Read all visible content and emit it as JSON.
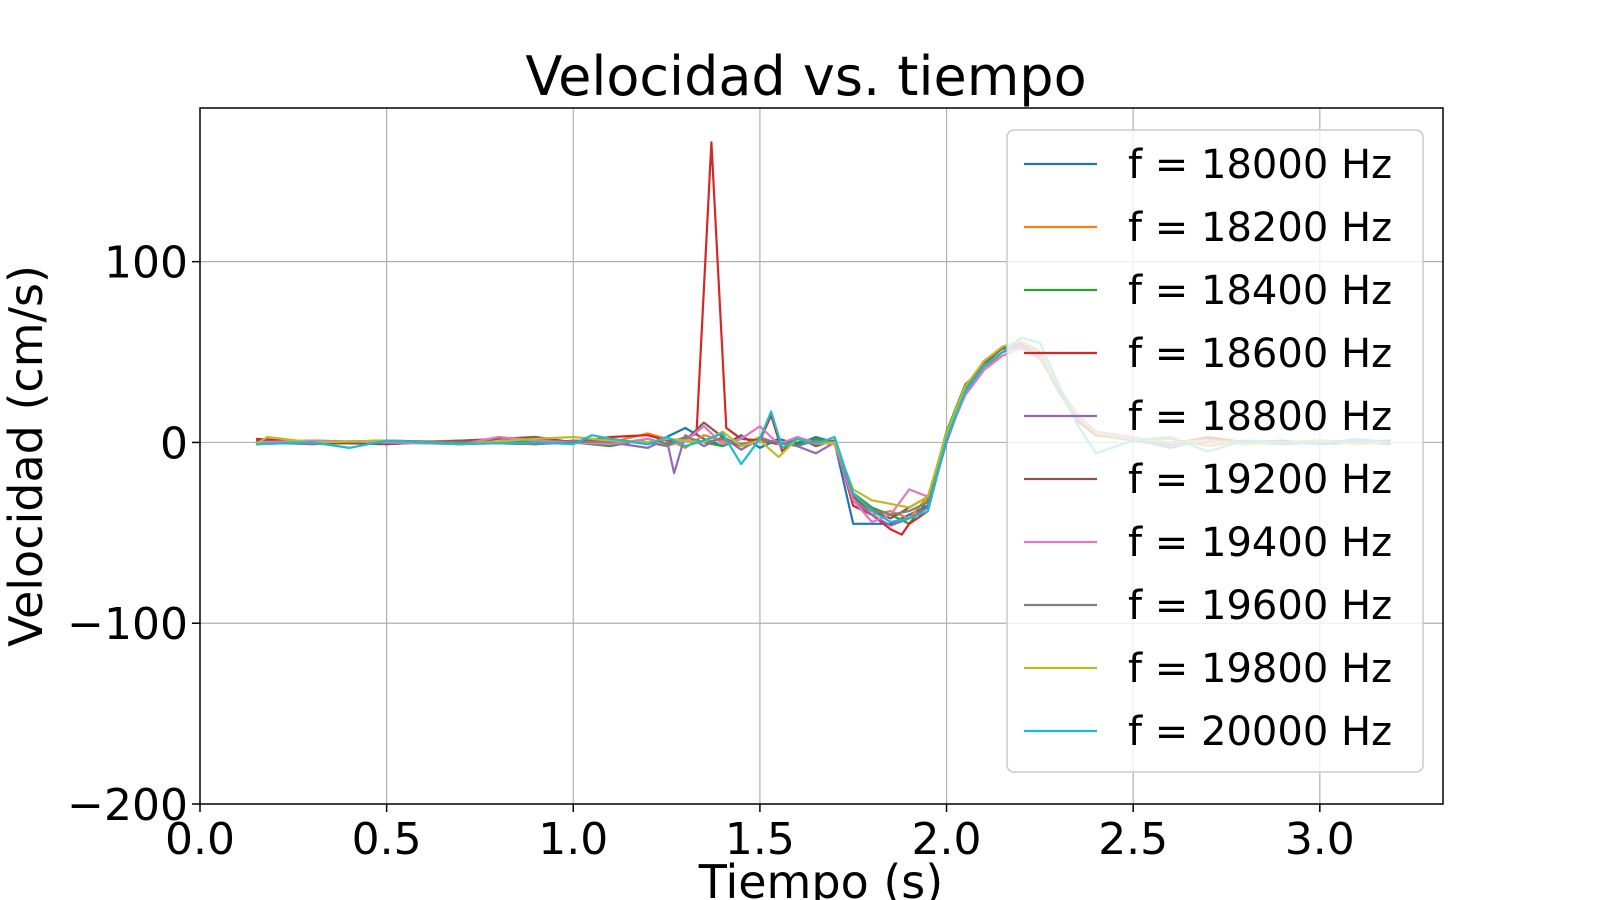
{
  "chart_data": {
    "type": "line",
    "title": "Velocidad vs. tiempo",
    "xlabel": "Tiempo (s)",
    "ylabel": "Velocidad (cm/s)",
    "xlim": [
      0.0,
      3.33
    ],
    "ylim": [
      -200,
      185
    ],
    "xticks": [
      0.0,
      0.5,
      1.0,
      1.5,
      2.0,
      2.5,
      3.0
    ],
    "xtick_labels": [
      "0.0",
      "0.5",
      "1.0",
      "1.5",
      "2.0",
      "2.5",
      "3.0"
    ],
    "yticks": [
      -200,
      -100,
      0,
      100
    ],
    "ytick_labels": [
      "−200",
      "−100",
      "0",
      "100"
    ],
    "grid": true,
    "legend_position": "upper-right",
    "series": [
      {
        "name": "f = 18000 Hz",
        "color": "#1f77b4",
        "x": [
          0.15,
          0.3,
          0.5,
          0.7,
          0.9,
          1.0,
          1.1,
          1.2,
          1.25,
          1.3,
          1.35,
          1.4,
          1.45,
          1.5,
          1.55,
          1.6,
          1.65,
          1.7,
          1.75,
          1.8,
          1.85,
          1.9,
          1.95,
          2.0,
          2.05,
          2.1,
          2.15,
          2.2,
          2.25,
          2.3,
          2.35,
          2.4,
          2.5,
          2.6,
          2.7,
          2.8,
          2.9,
          3.0,
          3.1,
          3.19
        ],
        "y": [
          0,
          1,
          -1,
          1,
          0,
          0,
          2,
          -1,
          3,
          8,
          2,
          -2,
          4,
          -3,
          2,
          -1,
          3,
          0,
          -45,
          -45,
          -45,
          -40,
          -35,
          5,
          30,
          45,
          52,
          55,
          50,
          30,
          15,
          5,
          2,
          -3,
          2,
          -1,
          0,
          1,
          -1,
          0
        ]
      },
      {
        "name": "f = 18200 Hz",
        "color": "#ff7f0e",
        "x": [
          0.15,
          0.3,
          0.5,
          0.7,
          0.9,
          1.0,
          1.1,
          1.2,
          1.25,
          1.3,
          1.35,
          1.4,
          1.45,
          1.5,
          1.55,
          1.6,
          1.65,
          1.7,
          1.75,
          1.8,
          1.85,
          1.9,
          1.95,
          2.0,
          2.05,
          2.1,
          2.15,
          2.2,
          2.25,
          2.3,
          2.35,
          2.4,
          2.5,
          2.6,
          2.7,
          2.8,
          2.9,
          3.0,
          3.1,
          3.19
        ],
        "y": [
          1,
          -1,
          0,
          1,
          -1,
          1,
          0,
          5,
          2,
          -3,
          4,
          1,
          -2,
          3,
          -1,
          2,
          0,
          -1,
          -30,
          -40,
          -38,
          -42,
          -30,
          3,
          28,
          40,
          50,
          53,
          48,
          28,
          12,
          4,
          1,
          2,
          -2,
          1,
          0,
          -1,
          1,
          0
        ]
      },
      {
        "name": "f = 18400 Hz",
        "color": "#2ca02c",
        "x": [
          0.15,
          0.3,
          0.5,
          0.7,
          0.9,
          1.0,
          1.1,
          1.2,
          1.25,
          1.3,
          1.35,
          1.4,
          1.45,
          1.5,
          1.55,
          1.6,
          1.65,
          1.7,
          1.75,
          1.8,
          1.85,
          1.9,
          1.95,
          2.0,
          2.05,
          2.1,
          2.15,
          2.2,
          2.25,
          2.3,
          2.35,
          2.4,
          2.5,
          2.6,
          2.7,
          2.8,
          2.9,
          3.0,
          3.1,
          3.19
        ],
        "y": [
          -1,
          1,
          0,
          -1,
          1,
          0,
          -2,
          2,
          -1,
          3,
          0,
          -2,
          2,
          1,
          -1,
          0,
          2,
          0,
          -28,
          -36,
          -40,
          -45,
          -32,
          6,
          32,
          42,
          50,
          54,
          46,
          30,
          14,
          6,
          1,
          -2,
          1,
          0,
          -1,
          1,
          0,
          0
        ]
      },
      {
        "name": "f = 18600 Hz",
        "color": "#d62728",
        "x": [
          0.15,
          0.3,
          0.5,
          0.7,
          0.9,
          1.0,
          1.1,
          1.2,
          1.25,
          1.3,
          1.33,
          1.37,
          1.41,
          1.45,
          1.5,
          1.53,
          1.56,
          1.6,
          1.65,
          1.7,
          1.75,
          1.8,
          1.85,
          1.88,
          1.9,
          1.95,
          2.0,
          2.05,
          2.1,
          2.15,
          2.2,
          2.25,
          2.3,
          2.35,
          2.4,
          2.5,
          2.6,
          2.7,
          2.8,
          2.9,
          3.0,
          3.1,
          3.19
        ],
        "y": [
          2,
          0,
          1,
          -1,
          2,
          0,
          3,
          4,
          1,
          2,
          5,
          166,
          8,
          2,
          1,
          15,
          -5,
          3,
          -2,
          1,
          -35,
          -40,
          -48,
          -51,
          -45,
          -38,
          2,
          30,
          45,
          52,
          56,
          50,
          30,
          12,
          4,
          2,
          -1,
          3,
          0,
          1,
          -1,
          0,
          1
        ]
      },
      {
        "name": "f = 18800 Hz",
        "color": "#9467bd",
        "x": [
          0.15,
          0.3,
          0.5,
          0.7,
          0.9,
          1.0,
          1.1,
          1.2,
          1.25,
          1.27,
          1.3,
          1.35,
          1.4,
          1.45,
          1.5,
          1.55,
          1.6,
          1.65,
          1.7,
          1.75,
          1.8,
          1.85,
          1.9,
          1.95,
          2.0,
          2.05,
          2.1,
          2.15,
          2.2,
          2.25,
          2.3,
          2.35,
          2.4,
          2.5,
          2.6,
          2.7,
          2.8,
          2.9,
          3.0,
          3.1,
          3.19
        ],
        "y": [
          0,
          -1,
          1,
          0,
          -1,
          1,
          0,
          -3,
          2,
          -17,
          4,
          -2,
          3,
          -4,
          2,
          0,
          -2,
          -6,
          0,
          -32,
          -40,
          -46,
          -42,
          -36,
          0,
          28,
          42,
          50,
          54,
          48,
          28,
          14,
          5,
          2,
          -1,
          0,
          1,
          -1,
          0,
          1,
          -1
        ]
      },
      {
        "name": "f = 19200 Hz",
        "color": "#8c564b",
        "x": [
          0.15,
          0.3,
          0.5,
          0.7,
          0.9,
          1.0,
          1.1,
          1.2,
          1.25,
          1.3,
          1.35,
          1.4,
          1.45,
          1.5,
          1.55,
          1.6,
          1.65,
          1.7,
          1.75,
          1.8,
          1.85,
          1.9,
          1.95,
          2.0,
          2.05,
          2.1,
          2.15,
          2.2,
          2.25,
          2.3,
          2.35,
          2.4,
          2.5,
          2.6,
          2.7,
          2.8,
          2.9,
          3.0,
          3.1,
          3.19
        ],
        "y": [
          1,
          0,
          -1,
          1,
          3,
          0,
          2,
          -1,
          2,
          1,
          11,
          3,
          -2,
          1,
          -1,
          2,
          0,
          1,
          -30,
          -38,
          -42,
          -36,
          -30,
          4,
          30,
          44,
          52,
          55,
          47,
          29,
          13,
          5,
          1,
          0,
          2,
          -1,
          0,
          1,
          0,
          -1
        ]
      },
      {
        "name": "f = 19400 Hz",
        "color": "#e377c2",
        "x": [
          0.15,
          0.3,
          0.5,
          0.7,
          0.8,
          0.9,
          1.0,
          1.1,
          1.2,
          1.25,
          1.3,
          1.35,
          1.4,
          1.45,
          1.5,
          1.55,
          1.6,
          1.65,
          1.7,
          1.75,
          1.8,
          1.85,
          1.9,
          1.95,
          2.0,
          2.05,
          2.1,
          2.15,
          2.2,
          2.25,
          2.3,
          2.35,
          2.4,
          2.5,
          2.6,
          2.7,
          2.8,
          2.9,
          3.0,
          3.1,
          3.19
        ],
        "y": [
          0,
          1,
          0,
          -1,
          3,
          1,
          0,
          -1,
          2,
          -2,
          1,
          9,
          -1,
          2,
          9,
          -1,
          3,
          0,
          -1,
          -32,
          -44,
          -40,
          -26,
          -30,
          2,
          26,
          40,
          48,
          52,
          46,
          30,
          16,
          6,
          3,
          -2,
          1,
          0,
          -1,
          1,
          0,
          0
        ]
      },
      {
        "name": "f = 19600 Hz",
        "color": "#7f7f7f",
        "x": [
          0.15,
          0.3,
          0.5,
          0.7,
          0.9,
          1.0,
          1.1,
          1.2,
          1.25,
          1.3,
          1.35,
          1.4,
          1.45,
          1.5,
          1.55,
          1.6,
          1.65,
          1.7,
          1.75,
          1.8,
          1.85,
          1.9,
          1.95,
          2.0,
          2.05,
          2.1,
          2.15,
          2.2,
          2.25,
          2.3,
          2.35,
          2.4,
          2.5,
          2.6,
          2.7,
          2.8,
          2.9,
          3.0,
          3.1,
          3.19
        ],
        "y": [
          -1,
          0,
          1,
          0,
          -1,
          0,
          1,
          0,
          -2,
          3,
          0,
          2,
          -1,
          1,
          0,
          -2,
          1,
          0,
          -29,
          -37,
          -40,
          -38,
          -33,
          3,
          29,
          43,
          50,
          53,
          48,
          29,
          13,
          5,
          1,
          -1,
          1,
          0,
          -1,
          0,
          1,
          0
        ]
      },
      {
        "name": "f = 19800 Hz",
        "color": "#bcbd22",
        "x": [
          0.15,
          0.18,
          0.3,
          0.5,
          0.7,
          0.9,
          1.0,
          1.1,
          1.2,
          1.25,
          1.3,
          1.35,
          1.4,
          1.45,
          1.5,
          1.55,
          1.6,
          1.65,
          1.7,
          1.75,
          1.8,
          1.85,
          1.9,
          1.95,
          2.0,
          2.05,
          2.1,
          2.15,
          2.2,
          2.25,
          2.3,
          2.35,
          2.4,
          2.5,
          2.6,
          2.7,
          2.8,
          2.9,
          3.0,
          3.1,
          3.19
        ],
        "y": [
          -1,
          3,
          0,
          1,
          -1,
          2,
          3,
          1,
          0,
          2,
          1,
          0,
          6,
          -2,
          1,
          -8,
          2,
          -1,
          0,
          -26,
          -32,
          -34,
          -36,
          -30,
          5,
          31,
          45,
          53,
          56,
          49,
          31,
          15,
          5,
          2,
          0,
          1,
          -1,
          0,
          1,
          -1,
          0
        ]
      },
      {
        "name": "f = 20000 Hz",
        "color": "#17becf",
        "x": [
          0.15,
          0.3,
          0.4,
          0.5,
          0.7,
          0.9,
          1.0,
          1.05,
          1.1,
          1.2,
          1.25,
          1.3,
          1.35,
          1.4,
          1.45,
          1.5,
          1.53,
          1.56,
          1.6,
          1.65,
          1.7,
          1.75,
          1.8,
          1.85,
          1.9,
          1.95,
          2.0,
          2.05,
          2.1,
          2.15,
          2.2,
          2.25,
          2.3,
          2.35,
          2.4,
          2.5,
          2.6,
          2.7,
          2.8,
          2.9,
          3.0,
          3.1,
          3.19
        ],
        "y": [
          -1,
          0,
          -3,
          1,
          -1,
          0,
          -1,
          4,
          2,
          -1,
          3,
          -2,
          1,
          5,
          -12,
          2,
          17,
          -3,
          2,
          -1,
          3,
          -28,
          -38,
          -44,
          -42,
          -38,
          2,
          28,
          42,
          50,
          58,
          55,
          32,
          10,
          -6,
          1,
          3,
          -5,
          1,
          0,
          -1,
          2,
          0
        ]
      }
    ]
  }
}
